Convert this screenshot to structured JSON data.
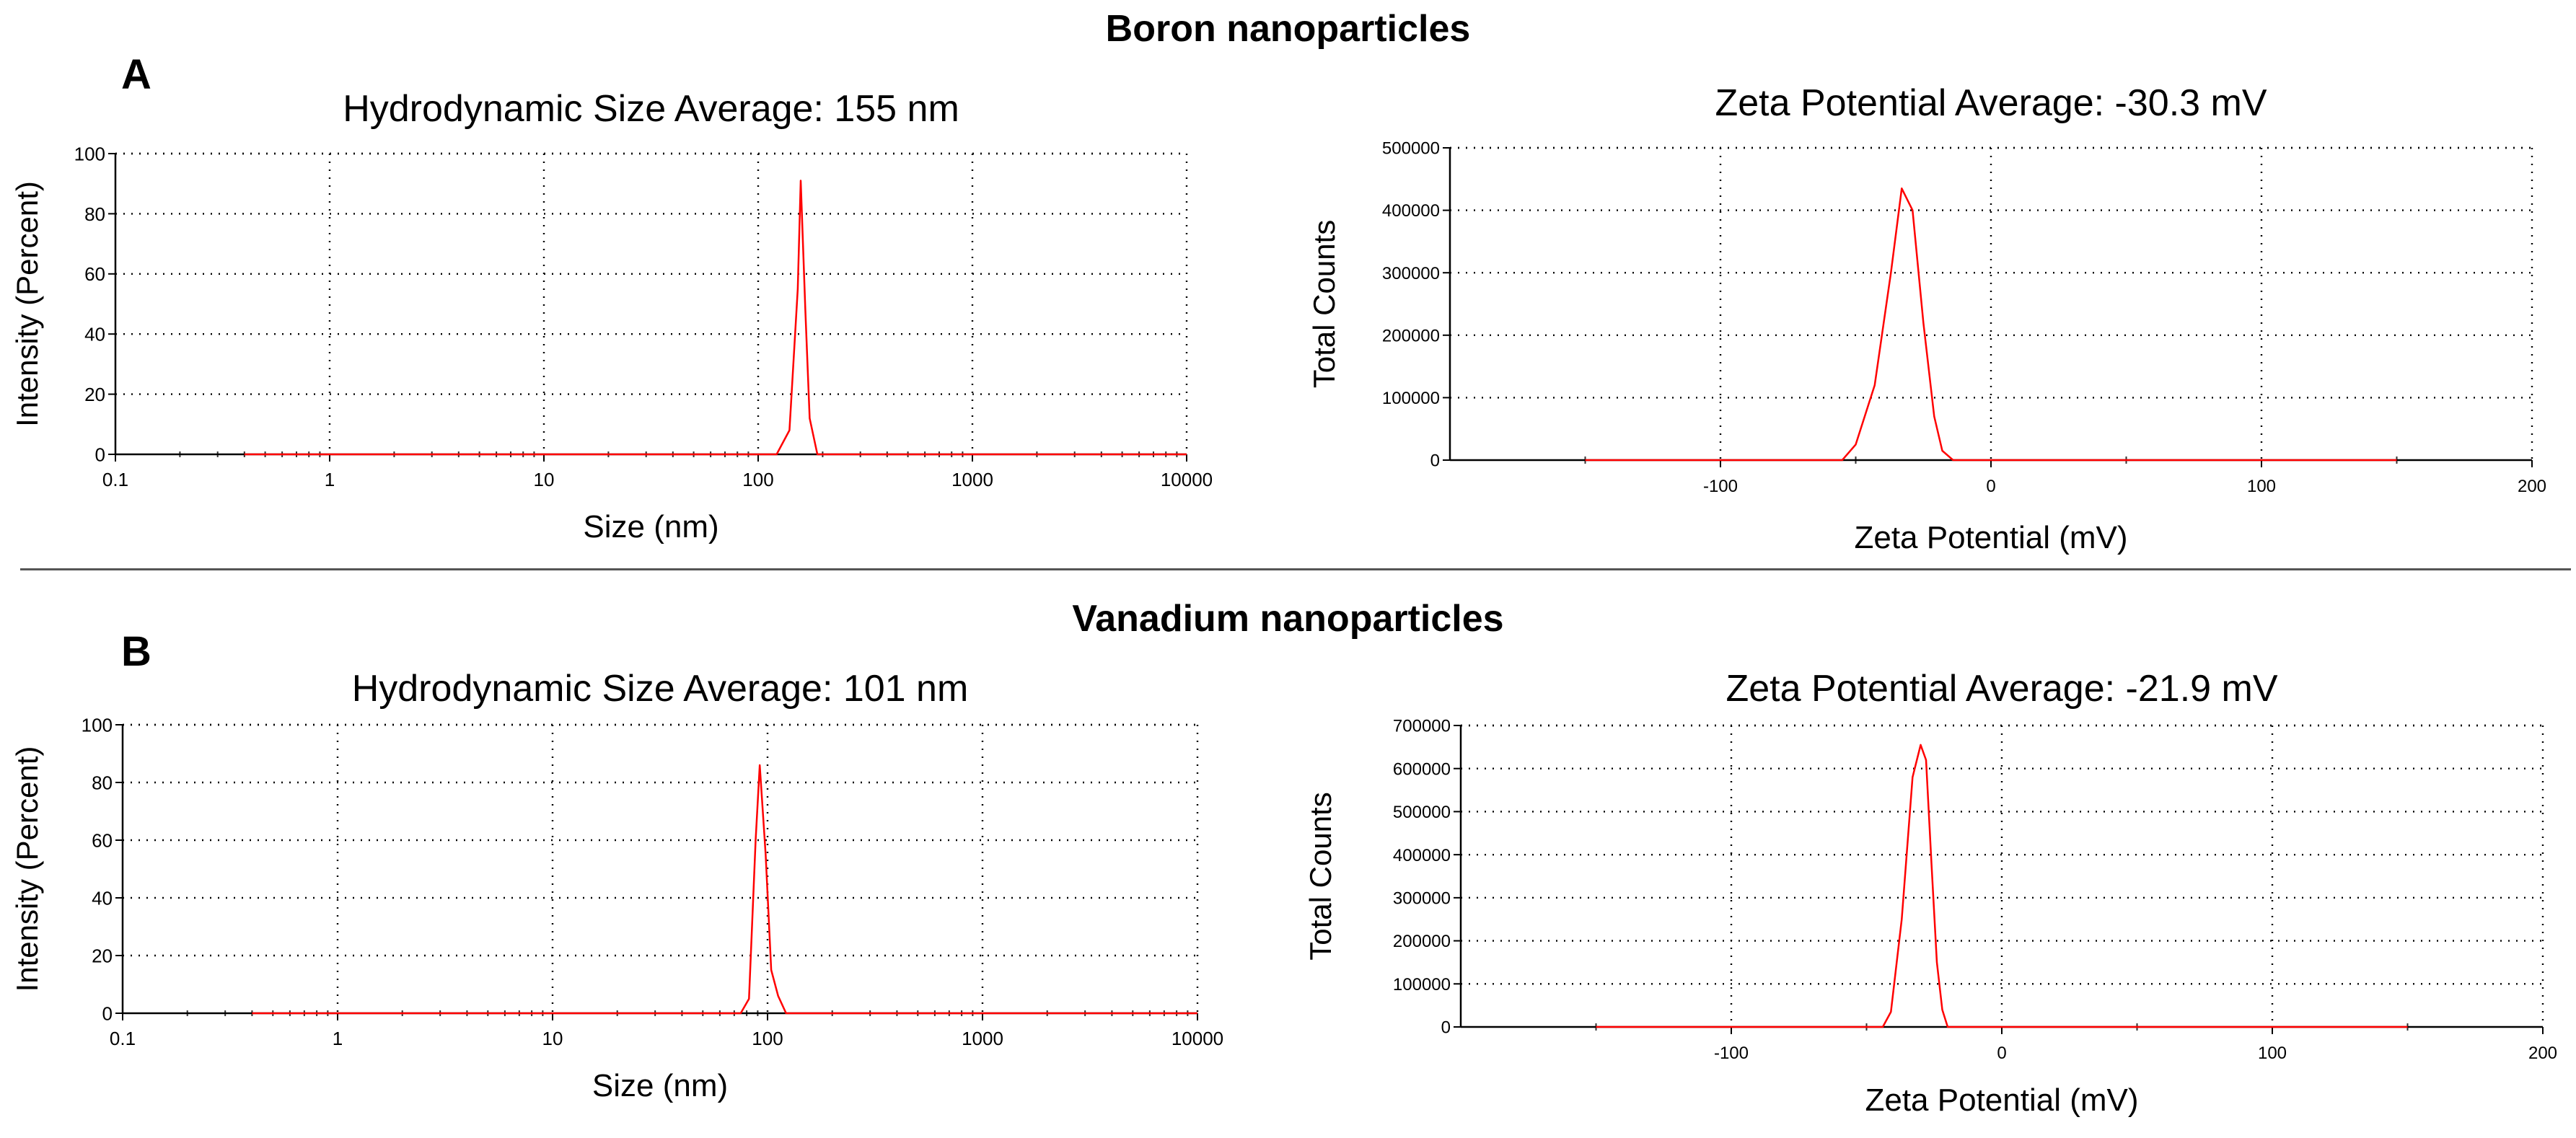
{
  "headings": {
    "top": "Boron nanoparticles",
    "bottom": "Vanadium nanoparticles",
    "panel_a": "A",
    "panel_b": "B"
  },
  "colors": {
    "curve": "#ff0000",
    "axis": "#000000",
    "grid": "#000000"
  },
  "chart_data": [
    {
      "id": "boron-size",
      "type": "line",
      "title": "Hydrodynamic Size Average:  155 nm",
      "xlabel": "Size (nm)",
      "ylabel": "Intensity (Percent)",
      "xscale": "log",
      "xlim": [
        0.1,
        10000
      ],
      "ylim": [
        0,
        100
      ],
      "xticks": [
        0.1,
        1,
        10,
        100,
        1000,
        10000
      ],
      "xtick_labels": [
        "0.1",
        "1",
        "10",
        "100",
        "1000",
        "10000"
      ],
      "yticks": [
        0,
        20,
        40,
        60,
        80,
        100
      ],
      "ytick_labels": [
        "0",
        "20",
        "40",
        "60",
        "80",
        "100"
      ],
      "grid": true,
      "series": [
        {
          "name": "Intensity",
          "x": [
            0.4,
            100,
            122,
            140,
            153,
            158,
            166,
            174,
            189,
            10000
          ],
          "y": [
            0,
            0,
            0,
            8,
            55,
            91,
            48,
            12,
            0,
            0
          ]
        }
      ]
    },
    {
      "id": "boron-zeta",
      "type": "line",
      "title": "Zeta Potential Average:  -30.3 mV",
      "xlabel": "Zeta Potential (mV)",
      "ylabel": "Total Counts",
      "xscale": "linear",
      "xlim": [
        -200,
        200
      ],
      "ylim": [
        0,
        500000
      ],
      "xticks": [
        -100,
        0,
        100,
        200
      ],
      "xtick_labels": [
        "-100",
        "0",
        "100",
        "200"
      ],
      "yticks": [
        0,
        100000,
        200000,
        300000,
        400000,
        500000
      ],
      "ytick_labels": [
        "0",
        "100000",
        "200000",
        "300000",
        "400000",
        "500000"
      ],
      "grid": true,
      "series": [
        {
          "name": "Counts",
          "x": [
            -150,
            -55,
            -50,
            -43,
            -37,
            -33,
            -29,
            -25,
            -21,
            -18,
            -14,
            150
          ],
          "y": [
            0,
            0,
            25000,
            120000,
            300000,
            435000,
            400000,
            220000,
            70000,
            15000,
            0,
            0
          ]
        }
      ]
    },
    {
      "id": "vanadium-size",
      "type": "line",
      "title": "Hydrodynamic Size Average:  101 nm",
      "xlabel": "Size (nm)",
      "ylabel": "Intensity (Percent)",
      "xscale": "log",
      "xlim": [
        0.1,
        10000
      ],
      "ylim": [
        0,
        100
      ],
      "xticks": [
        0.1,
        1,
        10,
        100,
        1000,
        10000
      ],
      "xtick_labels": [
        "0.1",
        "1",
        "10",
        "100",
        "1000",
        "10000"
      ],
      "yticks": [
        0,
        20,
        40,
        60,
        80,
        100
      ],
      "ytick_labels": [
        "0",
        "20",
        "40",
        "60",
        "80",
        "100"
      ],
      "grid": true,
      "series": [
        {
          "name": "Intensity",
          "x": [
            0.4,
            75,
            82,
            88,
            92,
            98,
            104,
            112,
            122,
            10000
          ],
          "y": [
            0,
            0,
            5,
            60,
            86,
            55,
            15,
            6,
            0,
            0
          ]
        }
      ]
    },
    {
      "id": "vanadium-zeta",
      "type": "line",
      "title": "Zeta Potential Average:  -21.9 mV",
      "xlabel": "Zeta Potential (mV)",
      "ylabel": "Total Counts",
      "xscale": "linear",
      "xlim": [
        -200,
        200
      ],
      "ylim": [
        0,
        700000
      ],
      "xticks": [
        -100,
        0,
        100,
        200
      ],
      "xtick_labels": [
        "-100",
        "0",
        "100",
        "200"
      ],
      "yticks": [
        0,
        100000,
        200000,
        300000,
        400000,
        500000,
        600000,
        700000
      ],
      "ytick_labels": [
        "0",
        "100000",
        "200000",
        "300000",
        "400000",
        "500000",
        "600000",
        "700000"
      ],
      "grid": true,
      "series": [
        {
          "name": "Counts",
          "x": [
            -150,
            -44,
            -41,
            -37,
            -33,
            -30,
            -28,
            -26,
            -24,
            -22,
            -20,
            150
          ],
          "y": [
            0,
            0,
            35000,
            250000,
            580000,
            655000,
            620000,
            380000,
            150000,
            40000,
            0,
            0
          ]
        }
      ]
    }
  ]
}
